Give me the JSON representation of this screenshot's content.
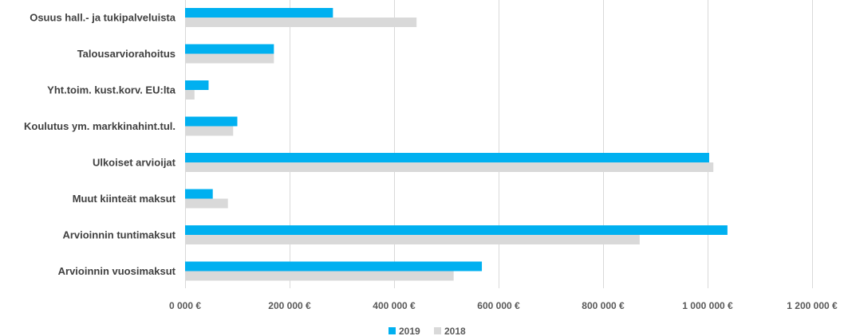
{
  "chart_data": {
    "type": "bar",
    "orientation": "horizontal",
    "categories": [
      "Osuus hall.- ja tukipalveluista",
      "Talousarviorahoitus",
      "Yht.toim. kust.korv. EU:lta",
      "Koulutus ym. markkinahint.tul.",
      "Ulkoiset arvioijat",
      "Muut kiinteät maksut",
      "Arvioinnin tuntimaksut",
      "Arvioinnin vuosimaksut"
    ],
    "series": [
      {
        "name": "2019",
        "color": "#00b0f0",
        "values": [
          283000,
          170000,
          45000,
          100000,
          1003000,
          53000,
          1038000,
          568000
        ]
      },
      {
        "name": "2018",
        "color": "#d9d9d9",
        "values": [
          443000,
          170000,
          18000,
          92000,
          1011000,
          82000,
          870000,
          514000
        ]
      }
    ],
    "xlim": [
      0,
      1200000
    ],
    "xticks": [
      0,
      200000,
      400000,
      600000,
      800000,
      1000000,
      1200000
    ],
    "xtick_labels": [
      "0 000 €",
      "200 000 €",
      "400 000 €",
      "600 000 €",
      "800 000 €",
      "1 000 000 €",
      "1 200 000 €"
    ],
    "grid": true,
    "legend": "bottom"
  }
}
